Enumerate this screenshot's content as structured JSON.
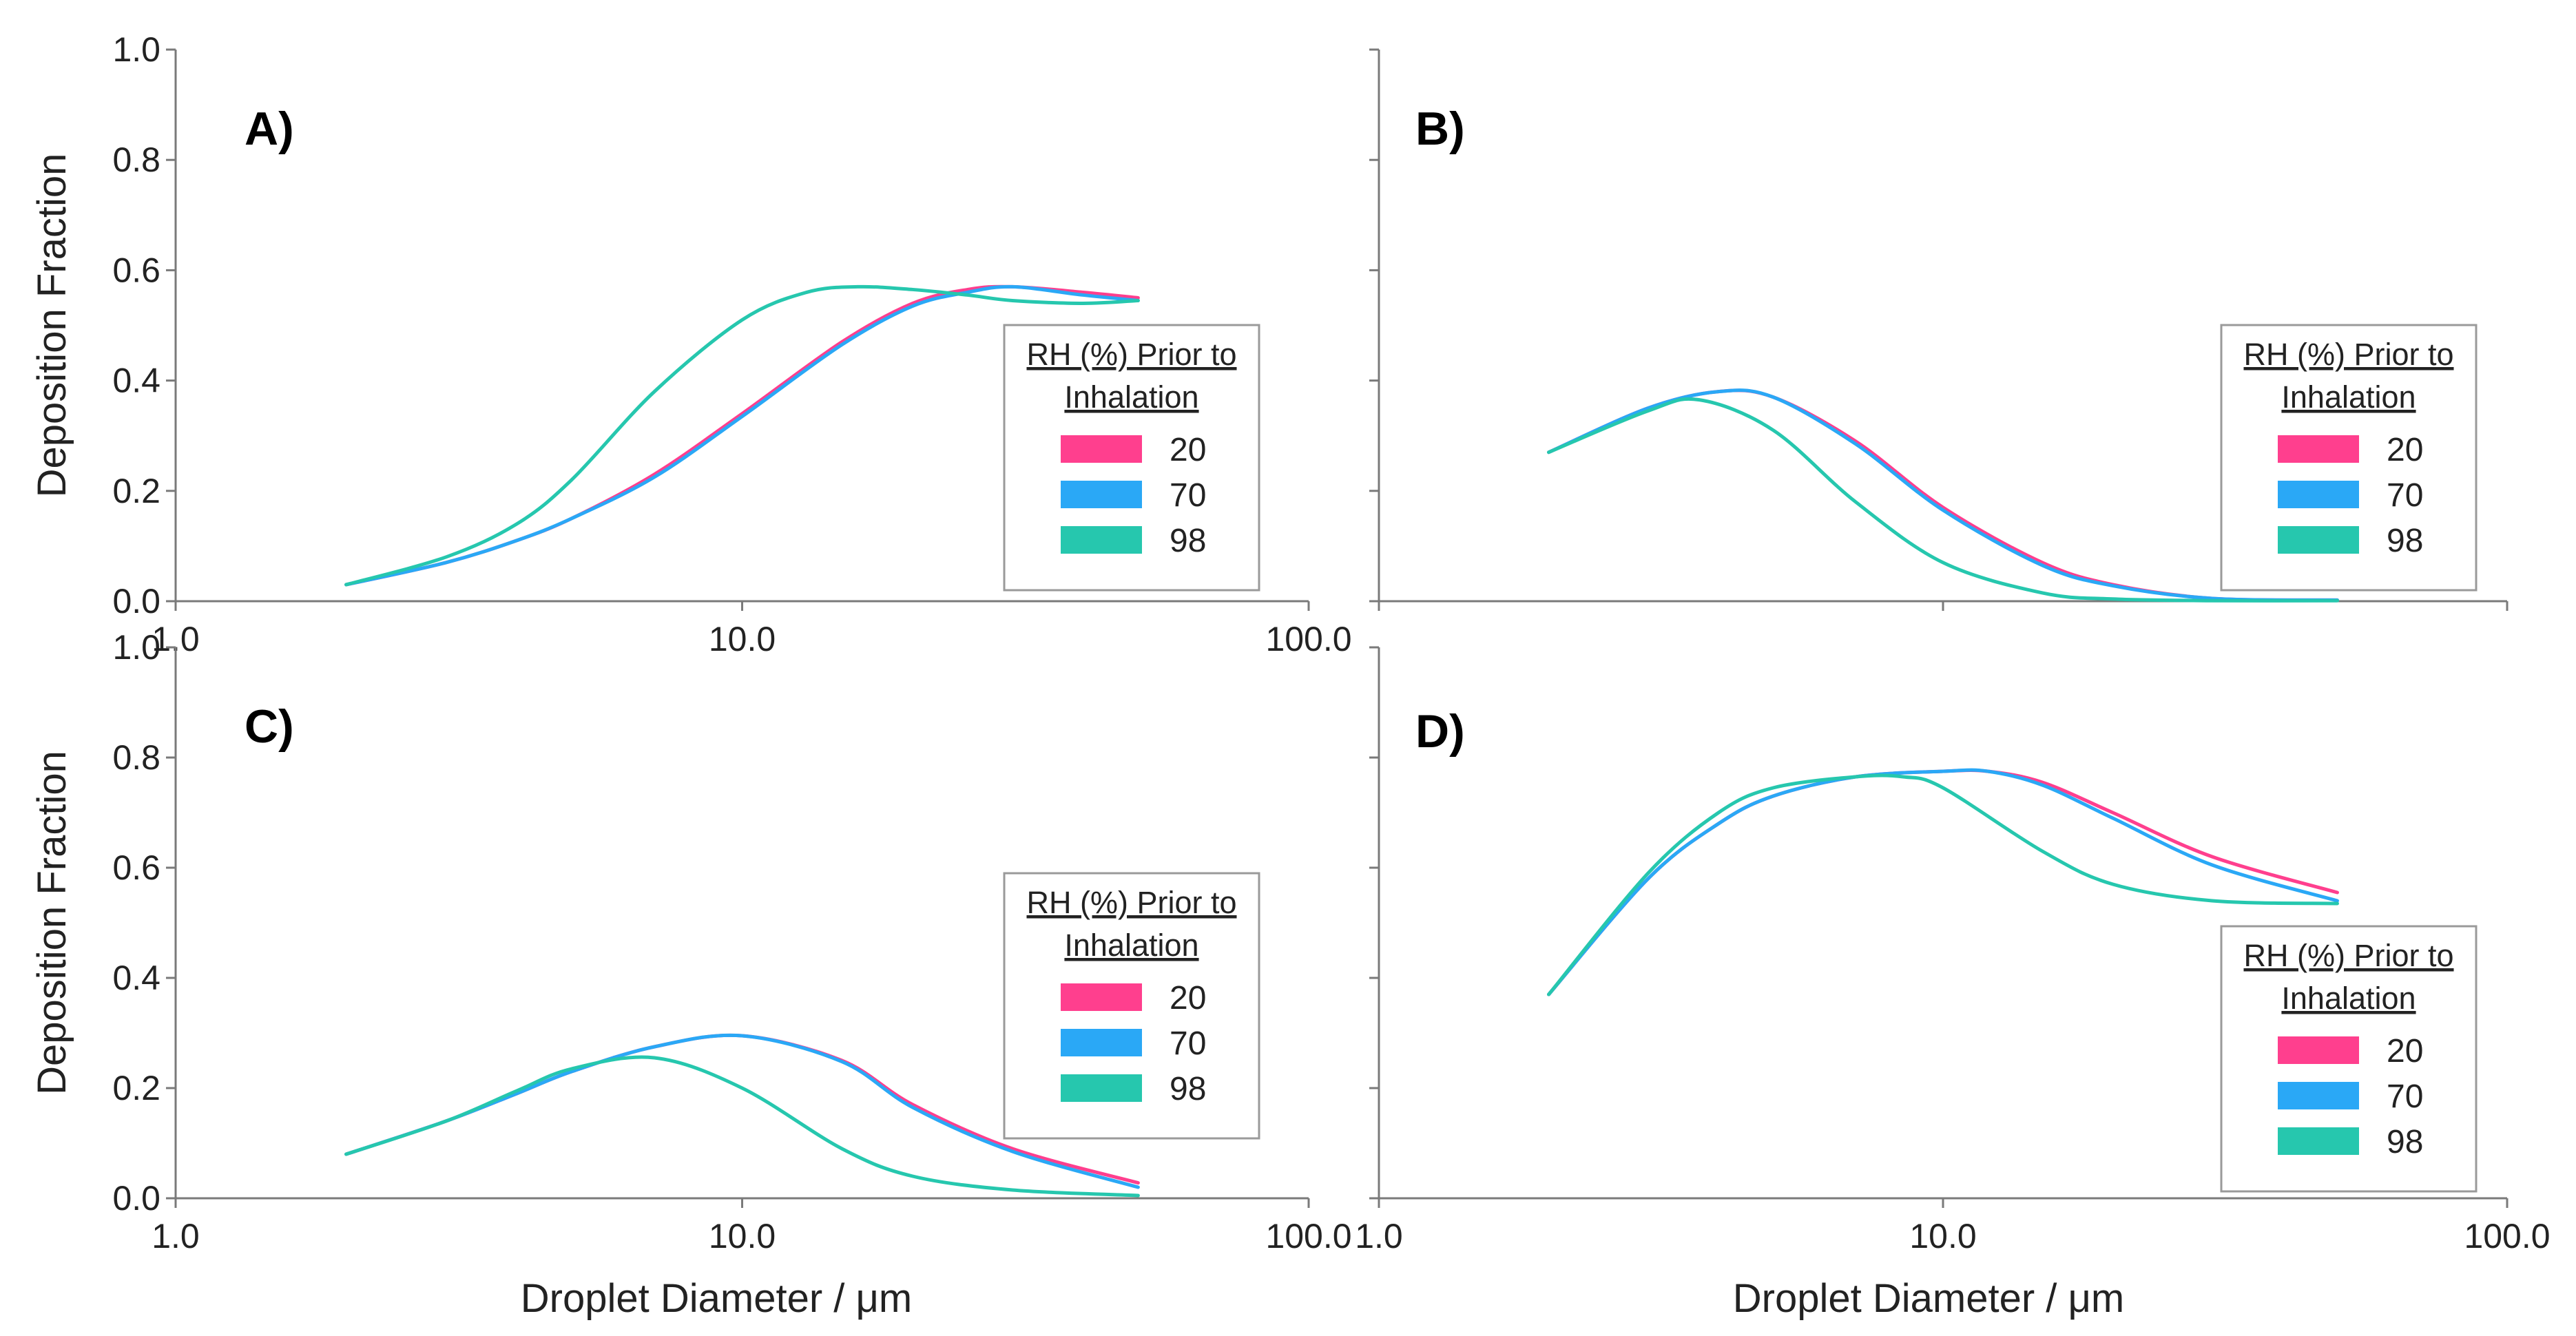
{
  "figure": {
    "xlabel": "Droplet Diameter / μm",
    "ylabel": "Deposition Fraction"
  },
  "colors": {
    "rh20": "#ff3f8e",
    "rh70": "#2aa8f6",
    "rh98": "#26c7ae",
    "axis": "#7a7a7a"
  },
  "chart_data": [
    {
      "type": "line",
      "panel": "A)",
      "xscale": "log",
      "xlim": [
        1.0,
        100.0
      ],
      "ylim": [
        0.0,
        1.0
      ],
      "xticks": [
        "1.0",
        "10.0",
        "100.0"
      ],
      "yticks": [
        "0.0",
        "0.2",
        "0.4",
        "0.6",
        "0.8",
        "1.0"
      ],
      "xlabel": "Droplet Diameter / μm",
      "ylabel": "Deposition Fraction",
      "legend": {
        "title": "RH (%) Prior to Inhalation",
        "title_lines": [
          "RH (%) Prior to",
          "Inhalation"
        ],
        "entries": [
          "20",
          "70",
          "98"
        ],
        "placement": "right"
      },
      "series": [
        {
          "name": "20",
          "color": "#ff3f8e",
          "x": [
            2,
            3,
            4,
            5,
            7,
            10,
            15,
            20,
            25,
            30,
            40,
            50
          ],
          "y": [
            0.03,
            0.07,
            0.11,
            0.15,
            0.23,
            0.34,
            0.47,
            0.54,
            0.565,
            0.57,
            0.56,
            0.55
          ]
        },
        {
          "name": "70",
          "color": "#2aa8f6",
          "x": [
            2,
            3,
            4,
            5,
            7,
            10,
            15,
            20,
            25,
            30,
            40,
            50
          ],
          "y": [
            0.03,
            0.07,
            0.11,
            0.15,
            0.225,
            0.335,
            0.465,
            0.535,
            0.56,
            0.57,
            0.555,
            0.545
          ]
        },
        {
          "name": "98",
          "color": "#26c7ae",
          "x": [
            2,
            3,
            4,
            5,
            7,
            10,
            13,
            16,
            20,
            25,
            30,
            40,
            50
          ],
          "y": [
            0.03,
            0.08,
            0.14,
            0.22,
            0.38,
            0.51,
            0.56,
            0.57,
            0.565,
            0.555,
            0.545,
            0.54,
            0.545
          ]
        }
      ]
    },
    {
      "type": "line",
      "panel": "B)",
      "xscale": "log",
      "xlim": [
        1.0,
        100.0
      ],
      "ylim": [
        0.0,
        1.0
      ],
      "xticks": [
        "",
        "",
        ""
      ],
      "yticks": [
        "",
        "",
        "",
        "",
        "",
        ""
      ],
      "xlabel": "",
      "ylabel": "",
      "legend": {
        "title": "RH (%) Prior to Inhalation",
        "title_lines": [
          "RH (%) Prior to",
          "Inhalation"
        ],
        "entries": [
          "20",
          "70",
          "98"
        ],
        "placement": "right"
      },
      "series": [
        {
          "name": "20",
          "color": "#ff3f8e",
          "x": [
            2,
            3,
            4,
            5,
            7,
            10,
            15,
            20,
            30,
            50
          ],
          "y": [
            0.27,
            0.35,
            0.38,
            0.37,
            0.29,
            0.17,
            0.07,
            0.03,
            0.005,
            0.002
          ]
        },
        {
          "name": "70",
          "color": "#2aa8f6",
          "x": [
            2,
            3,
            4,
            5,
            7,
            10,
            15,
            20,
            30,
            50
          ],
          "y": [
            0.27,
            0.35,
            0.38,
            0.37,
            0.285,
            0.165,
            0.065,
            0.028,
            0.005,
            0.002
          ]
        },
        {
          "name": "98",
          "color": "#26c7ae",
          "x": [
            2,
            3,
            3.7,
            5,
            7,
            10,
            15,
            20,
            30,
            50
          ],
          "y": [
            0.27,
            0.345,
            0.365,
            0.31,
            0.18,
            0.07,
            0.015,
            0.004,
            0.001,
            0.001
          ]
        }
      ]
    },
    {
      "type": "line",
      "panel": "C)",
      "xscale": "log",
      "xlim": [
        1.0,
        100.0
      ],
      "ylim": [
        0.0,
        1.0
      ],
      "xticks": [
        "1.0",
        "10.0",
        "100.0"
      ],
      "yticks": [
        "0.0",
        "0.2",
        "0.4",
        "0.6",
        "0.8",
        "1.0"
      ],
      "xlabel": "Droplet Diameter / μm",
      "ylabel": "Deposition Fraction",
      "legend": {
        "title": "RH (%) Prior to Inhalation",
        "title_lines": [
          "RH (%) Prior to",
          "Inhalation"
        ],
        "entries": [
          "20",
          "70",
          "98"
        ],
        "placement": "right"
      },
      "series": [
        {
          "name": "20",
          "color": "#ff3f8e",
          "x": [
            2,
            3,
            4,
            5,
            7,
            10,
            15,
            20,
            30,
            50
          ],
          "y": [
            0.08,
            0.14,
            0.19,
            0.23,
            0.275,
            0.295,
            0.25,
            0.17,
            0.09,
            0.028
          ]
        },
        {
          "name": "70",
          "color": "#2aa8f6",
          "x": [
            2,
            3,
            4,
            5,
            7,
            10,
            15,
            20,
            30,
            50
          ],
          "y": [
            0.08,
            0.14,
            0.19,
            0.23,
            0.275,
            0.295,
            0.248,
            0.165,
            0.085,
            0.02
          ]
        },
        {
          "name": "98",
          "color": "#26c7ae",
          "x": [
            2,
            3,
            4,
            5,
            7,
            10,
            15,
            20,
            30,
            50
          ],
          "y": [
            0.08,
            0.14,
            0.195,
            0.235,
            0.255,
            0.2,
            0.09,
            0.04,
            0.015,
            0.005
          ]
        }
      ]
    },
    {
      "type": "line",
      "panel": "D)",
      "xscale": "log",
      "xlim": [
        1.0,
        100.0
      ],
      "ylim": [
        0.0,
        1.0
      ],
      "xticks": [
        "1.0",
        "10.0",
        "100.0"
      ],
      "yticks": [
        "",
        "",
        "",
        "",
        "",
        ""
      ],
      "xlabel": "Droplet Diameter / μm",
      "ylabel": "",
      "legend": {
        "title": "RH (%) Prior to Inhalation",
        "title_lines": [
          "RH (%) Prior to",
          "Inhalation"
        ],
        "entries": [
          "20",
          "70",
          "98"
        ],
        "placement": "bottom-right"
      },
      "series": [
        {
          "name": "20",
          "color": "#ff3f8e",
          "x": [
            2,
            3,
            4,
            5,
            7,
            10,
            12,
            15,
            20,
            30,
            50
          ],
          "y": [
            0.37,
            0.58,
            0.68,
            0.73,
            0.765,
            0.775,
            0.775,
            0.755,
            0.7,
            0.62,
            0.555
          ]
        },
        {
          "name": "70",
          "color": "#2aa8f6",
          "x": [
            2,
            3,
            4,
            5,
            7,
            10,
            12,
            15,
            20,
            30,
            50
          ],
          "y": [
            0.37,
            0.58,
            0.68,
            0.73,
            0.765,
            0.775,
            0.775,
            0.75,
            0.69,
            0.605,
            0.54
          ]
        },
        {
          "name": "98",
          "color": "#26c7ae",
          "x": [
            2,
            3,
            4,
            5,
            7,
            8.5,
            10,
            15,
            20,
            30,
            50
          ],
          "y": [
            0.37,
            0.59,
            0.7,
            0.745,
            0.765,
            0.765,
            0.745,
            0.63,
            0.57,
            0.54,
            0.535
          ]
        }
      ]
    }
  ]
}
